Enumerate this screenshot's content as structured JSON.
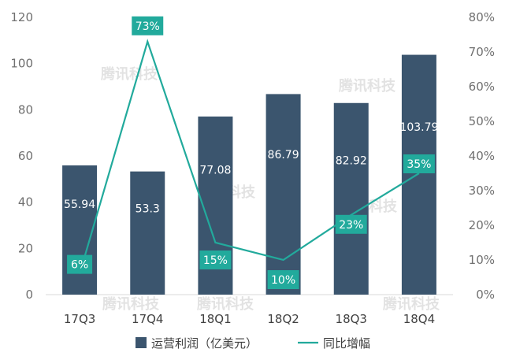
{
  "chart_data": {
    "type": "bar+line",
    "categories": [
      "17Q3",
      "17Q4",
      "18Q1",
      "18Q2",
      "18Q3",
      "18Q4"
    ],
    "series": [
      {
        "name": "运营利润（亿美元）",
        "type": "bar",
        "axis": "left",
        "color": "#3b556e",
        "values": [
          55.94,
          53.3,
          77.08,
          86.79,
          82.92,
          103.79
        ],
        "labels": [
          "55.94",
          "53.3",
          "77.08",
          "86.79",
          "82.92",
          "103.79"
        ]
      },
      {
        "name": "同比增幅",
        "type": "line",
        "axis": "right",
        "color": "#22aa9c",
        "values": [
          6,
          73,
          15,
          10,
          23,
          35
        ],
        "labels": [
          "6%",
          "73%",
          "15%",
          "10%",
          "23%",
          "35%"
        ]
      }
    ],
    "y_left": {
      "min": 0,
      "max": 120,
      "ticks": [
        "0",
        "20",
        "40",
        "60",
        "80",
        "100",
        "120"
      ]
    },
    "y_right": {
      "min": 0,
      "max": 80,
      "ticks": [
        "0%",
        "10%",
        "20%",
        "30%",
        "40%",
        "50%",
        "60%",
        "70%",
        "80%"
      ]
    },
    "grid": false,
    "legend": "bottom-center"
  },
  "watermark": "腾讯科技"
}
